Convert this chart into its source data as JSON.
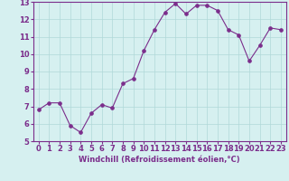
{
  "x": [
    0,
    1,
    2,
    3,
    4,
    5,
    6,
    7,
    8,
    9,
    10,
    11,
    12,
    13,
    14,
    15,
    16,
    17,
    18,
    19,
    20,
    21,
    22,
    23
  ],
  "y": [
    6.8,
    7.2,
    7.2,
    5.9,
    5.5,
    6.6,
    7.1,
    6.9,
    8.3,
    8.6,
    10.2,
    11.4,
    12.4,
    12.9,
    12.3,
    12.8,
    12.8,
    12.5,
    11.4,
    11.1,
    9.6,
    10.5,
    11.5,
    11.4
  ],
  "line_color": "#7b2d8b",
  "marker": "o",
  "background_color": "#d6f0f0",
  "grid_color": "#b0d8d8",
  "xlabel": "Windchill (Refroidissement éolien,°C)",
  "xlabel_fontsize": 6.0,
  "tick_fontsize": 6.0,
  "ylim": [
    5,
    13
  ],
  "xlim": [
    -0.5,
    23.5
  ],
  "yticks": [
    5,
    6,
    7,
    8,
    9,
    10,
    11,
    12,
    13
  ],
  "xticks": [
    0,
    1,
    2,
    3,
    4,
    5,
    6,
    7,
    8,
    9,
    10,
    11,
    12,
    13,
    14,
    15,
    16,
    17,
    18,
    19,
    20,
    21,
    22,
    23
  ],
  "spine_color": "#7b2d8b",
  "linewidth": 0.8,
  "markersize": 2.5,
  "markeredgewidth": 0.8
}
